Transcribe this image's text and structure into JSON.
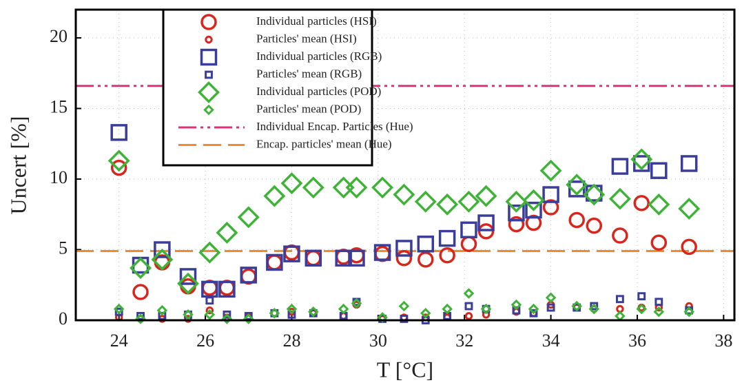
{
  "chart_data": {
    "type": "scatter",
    "x_label": "T [°C]",
    "y_label": "Uncert [%]",
    "xlim": [
      23.0,
      38.25
    ],
    "ylim": [
      0,
      22
    ],
    "xticks": [
      24,
      26,
      28,
      30,
      32,
      34,
      36,
      38
    ],
    "yticks": [
      0,
      5,
      10,
      15,
      20
    ],
    "grid": true,
    "legend": "upper left",
    "x": [
      24.0,
      24.5,
      25.0,
      25.6,
      26.1,
      26.5,
      27.0,
      27.6,
      28.0,
      28.5,
      29.2,
      29.5,
      30.1,
      30.6,
      31.1,
      31.6,
      32.1,
      32.5,
      33.2,
      33.6,
      34.0,
      34.6,
      35.0,
      35.6,
      36.1,
      36.5,
      37.2
    ],
    "series": [
      {
        "name": "Individual particles (HSI)",
        "color": "#d9261c",
        "marker": "circle",
        "marker_size": "large",
        "values": [
          10.8,
          2.0,
          4.1,
          2.4,
          2.3,
          2.3,
          3.1,
          4.1,
          4.8,
          4.4,
          4.5,
          4.6,
          4.7,
          4.4,
          4.3,
          4.6,
          5.4,
          6.3,
          6.8,
          6.9,
          8.0,
          7.1,
          6.7,
          6.0,
          8.3,
          5.5,
          5.2
        ]
      },
      {
        "name": "Particles' mean (HSI)",
        "color": "#d9261c",
        "marker": "circle",
        "marker_size": "small",
        "values": [
          0.2,
          0.1,
          0.1,
          0.1,
          0.7,
          0.2,
          0.2,
          0.5,
          0.6,
          0.5,
          0.3,
          1.1,
          0.1,
          0.2,
          0.2,
          0.2,
          0.3,
          0.4,
          0.6,
          0.5,
          1.1,
          0.9,
          0.8,
          0.8,
          0.9,
          0.9,
          1.0
        ]
      },
      {
        "name": "Individual particles (RGB)",
        "color": "#3a3d99",
        "marker": "square",
        "marker_size": "large",
        "values": [
          13.3,
          3.9,
          5.0,
          3.1,
          2.2,
          2.2,
          3.2,
          4.1,
          4.7,
          4.4,
          4.4,
          4.4,
          4.8,
          5.1,
          5.4,
          5.8,
          6.4,
          6.9,
          7.6,
          7.8,
          8.9,
          9.3,
          9.0,
          10.9,
          11.1,
          10.6,
          11.1
        ]
      },
      {
        "name": "Particles' mean (RGB)",
        "color": "#3a3d99",
        "marker": "square",
        "marker_size": "small",
        "values": [
          0.6,
          0.3,
          0.3,
          0.4,
          1.4,
          0.4,
          0.3,
          0.5,
          0.4,
          0.5,
          0.3,
          1.3,
          0.1,
          0.1,
          0.0,
          0.3,
          1.0,
          0.8,
          0.7,
          0.5,
          0.9,
          0.9,
          1.0,
          1.5,
          1.7,
          1.3,
          0.7
        ]
      },
      {
        "name": "Individual particles (POD)",
        "color": "#3fb338",
        "marker": "diamond",
        "marker_size": "large",
        "values": [
          11.3,
          3.7,
          4.3,
          2.6,
          4.8,
          6.2,
          7.3,
          8.8,
          9.7,
          9.4,
          9.4,
          9.4,
          9.4,
          8.9,
          8.4,
          8.2,
          8.4,
          8.8,
          8.4,
          8.5,
          10.6,
          9.6,
          8.9,
          8.6,
          11.4,
          8.2,
          7.9
        ]
      },
      {
        "name": "Particles' mean (POD)",
        "color": "#3fb338",
        "marker": "diamond",
        "marker_size": "small",
        "values": [
          0.8,
          0.1,
          0.7,
          0.4,
          0.4,
          0.1,
          0.1,
          0.5,
          0.8,
          0.6,
          0.8,
          1.2,
          0.2,
          1.0,
          0.5,
          0.8,
          1.9,
          0.8,
          1.1,
          0.8,
          1.6,
          1.0,
          0.8,
          0.3,
          0.8,
          0.6,
          0.6
        ]
      }
    ],
    "reference_lines": [
      {
        "name": "Individual Encap. Particles (Hue)",
        "color": "#e0307a",
        "style": "dash-dot-dot",
        "value": 16.6
      },
      {
        "name": "Encap. particles' mean (Hue)",
        "color": "#f08a2a",
        "style": "dashed",
        "value": 4.9
      }
    ]
  }
}
